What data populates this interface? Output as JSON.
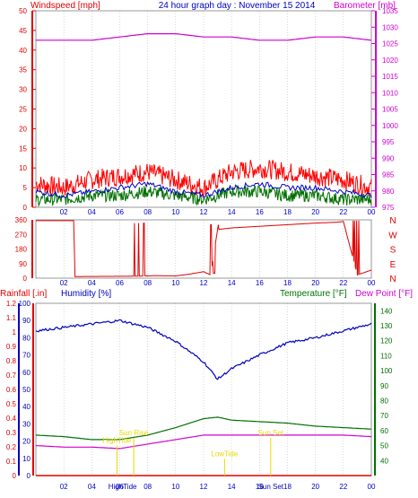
{
  "title": "24 hour graph day : November 15 2014",
  "colors": {
    "windspeed": "#e00000",
    "gust": "#ff0000",
    "avg": "#0000c0",
    "green": "#007000",
    "barometer": "#d000d0",
    "humidity": "#0000c0",
    "rainfall": "#e00000",
    "temperature": "#007000",
    "dewpoint": "#d000d0",
    "yellow": "#e8d800",
    "grid": "#b0b0b0"
  },
  "x_ticks": [
    "02",
    "04",
    "06",
    "08",
    "10",
    "12",
    "14",
    "16",
    "18",
    "20",
    "22",
    "00"
  ],
  "chart_data": [
    {
      "type": "line",
      "panel": "wind-barometer",
      "left_label": "Windspeed [mph]",
      "right_label": "Barometer [mb]",
      "left_ticks": [
        "50",
        "45",
        "40",
        "35",
        "30",
        "25",
        "20",
        "15",
        "10",
        "5",
        "0"
      ],
      "right_ticks": [
        "1035",
        "1030",
        "1025",
        "1020",
        "1015",
        "1010",
        "1005",
        "1000",
        "995",
        "990",
        "985",
        "980",
        "975"
      ],
      "left_range": [
        0,
        50
      ],
      "right_range": [
        975,
        1035
      ],
      "x": [
        0,
        2,
        4,
        6,
        8,
        10,
        12,
        14,
        16,
        18,
        20,
        22,
        24
      ],
      "series": [
        {
          "values": [
            6,
            5,
            7,
            8,
            9,
            7,
            5,
            9,
            10,
            9,
            8,
            7,
            5
          ]
        },
        {
          "values": [
            4,
            3,
            4,
            5,
            6,
            4,
            3,
            5,
            6,
            5,
            5,
            4,
            3
          ]
        },
        {
          "values": [
            2,
            2,
            3,
            3,
            4,
            3,
            2,
            4,
            4,
            3,
            3,
            2,
            2
          ]
        },
        {
          "values": [
            1026,
            1026,
            1026,
            1027,
            1028,
            1028,
            1027,
            1027,
            1026,
            1026,
            1027,
            1027,
            1026
          ]
        }
      ]
    },
    {
      "type": "scatter",
      "panel": "wind-direction",
      "left_ticks": [
        "360",
        "270",
        "180",
        "90",
        "0"
      ],
      "right_ticks": [
        "N",
        "W",
        "S",
        "E",
        "N"
      ],
      "left_range": [
        0,
        360
      ],
      "x": [
        0,
        2.7,
        2.8,
        7,
        8.5,
        10,
        11,
        12,
        12.5,
        13,
        14,
        16,
        18,
        20,
        21.5,
        22,
        23,
        23.5,
        24
      ],
      "values": [
        355,
        355,
        10,
        12,
        15,
        14,
        25,
        40,
        20,
        300,
        310,
        320,
        330,
        340,
        345,
        350,
        20,
        35,
        50
      ]
    },
    {
      "type": "line",
      "panel": "rain-humidity-temperature",
      "left_label_1": "Rainfall [.in]",
      "left_label_2": "Humidity [%]",
      "right_label_1": "Temperature [°F]",
      "right_label_2": "Dew Point [°F]",
      "rain_ticks": [
        "1.2",
        "1.1",
        "1",
        "0.9",
        "0.8",
        "0.7",
        "0.6",
        "0.5",
        "0.4",
        "0.3",
        "0.2",
        "0.1",
        "0"
      ],
      "humidity_ticks": [
        "100",
        "90",
        "80",
        "70",
        "60",
        "50",
        "40",
        "30",
        "20",
        "10",
        "0"
      ],
      "temp_ticks": [
        "140",
        "130",
        "120",
        "110",
        "100",
        "90",
        "80",
        "70",
        "60",
        "50",
        "40"
      ],
      "rain_range": [
        0,
        1.2
      ],
      "humidity_range": [
        0,
        100
      ],
      "temp_range": [
        30,
        145
      ],
      "x": [
        0,
        2,
        4,
        6,
        8,
        10,
        12,
        13,
        14,
        16,
        18,
        20,
        22,
        24
      ],
      "series": [
        {
          "values": [
            84,
            86,
            88,
            90,
            86,
            78,
            66,
            56,
            62,
            70,
            77,
            80,
            84,
            88
          ]
        },
        {
          "values": [
            57,
            56,
            54,
            54,
            57,
            62,
            68,
            69,
            67,
            66,
            65,
            63,
            62,
            61
          ]
        },
        {
          "values": [
            50,
            49,
            49,
            48,
            51,
            54,
            57,
            57,
            57,
            57,
            57,
            57,
            57,
            56
          ]
        },
        {
          "values": [
            0,
            0,
            0,
            0,
            0,
            0,
            0,
            0,
            0,
            0,
            0,
            0,
            0,
            0
          ]
        }
      ],
      "annotations": [
        {
          "text": "Sun Rise",
          "x": 7.0,
          "y": 57
        },
        {
          "text": "HighTide",
          "x": 5.8,
          "y": 52
        },
        {
          "text": "LowTide",
          "x": 13.5,
          "y": 43
        },
        {
          "text": "Sun Set",
          "x": 16.8,
          "y": 57
        }
      ],
      "x_tick_overlays": [
        {
          "text": "HighTide",
          "x": 6.2
        },
        {
          "text": "Sun Set",
          "x": 16.8
        }
      ]
    }
  ]
}
